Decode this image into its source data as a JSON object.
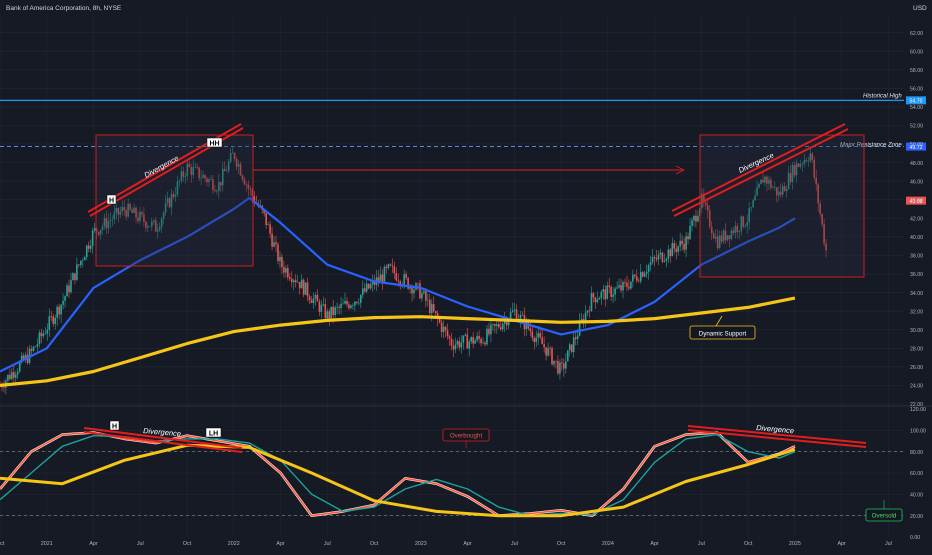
{
  "header": {
    "title": "Bank of America Corporation, 8h, NYSE",
    "currency_label": "USD"
  },
  "colors": {
    "background": "#161a25",
    "grid": "#232836",
    "axis_text": "#b2b5be",
    "up_candle": "#26a69a",
    "down_candle": "#ef5350",
    "ma_fast": "#2962ff",
    "ma_slow": "#f5c518",
    "annotation_red": "#e01e1e",
    "historical_high_line": "#2196f3",
    "resistance_line": "#4aa3ff",
    "osc_white": "#ffffff",
    "osc_red": "#ff5a3c",
    "osc_teal": "#1aa39b",
    "osc_yellow": "#f5c518"
  },
  "chart_data": [
    {
      "type": "candlestick",
      "title": "Bank of America Corporation, 8h, NYSE",
      "y_tick_labels": [
        "22.00",
        "24.00",
        "26.00",
        "28.00",
        "30.00",
        "32.00",
        "34.00",
        "36.00",
        "38.00",
        "40.00",
        "42.00",
        "44.00",
        "46.00",
        "48.00",
        "50.00",
        "52.00",
        "54.00",
        "56.00",
        "58.00",
        "60.00",
        "62.00"
      ],
      "x_tick_labels": [
        "Oct",
        "2021",
        "Apr",
        "Jul",
        "Oct",
        "2022",
        "Apr",
        "Jul",
        "Oct",
        "2023",
        "Apr",
        "Jul",
        "Oct",
        "2024",
        "Apr",
        "Jul",
        "Oct",
        "2025",
        "Apr",
        "Jul"
      ],
      "ylim": [
        22,
        64
      ],
      "grid": true,
      "price_series": {
        "name": "close",
        "x": [
          "2020-10",
          "2020-12",
          "2021-02",
          "2021-04",
          "2021-06",
          "2021-08",
          "2021-10",
          "2021-12",
          "2022-01",
          "2022-02",
          "2022-03",
          "2022-04",
          "2022-05",
          "2022-07",
          "2022-09",
          "2022-11",
          "2023-01",
          "2023-03",
          "2023-05",
          "2023-07",
          "2023-09",
          "2023-10",
          "2023-12",
          "2024-02",
          "2024-04",
          "2024-06",
          "2024-07",
          "2024-08",
          "2024-10",
          "2024-11",
          "2024-12",
          "2025-01",
          "2025-02",
          "2025-03"
        ],
        "values": [
          24.0,
          27.5,
          33.0,
          40.5,
          43.0,
          41.0,
          47.5,
          45.5,
          49.0,
          45.0,
          42.0,
          37.0,
          35.5,
          31.5,
          33.5,
          36.5,
          34.0,
          28.5,
          29.0,
          32.0,
          28.0,
          25.5,
          33.5,
          34.5,
          37.5,
          39.5,
          44.0,
          39.5,
          42.0,
          46.5,
          44.5,
          47.5,
          49.0,
          38.5
        ]
      },
      "moving_averages": [
        {
          "x": [
            "2020-10",
            "2021-01",
            "2021-04",
            "2021-07",
            "2021-10",
            "2022-01",
            "2022-02",
            "2022-04",
            "2022-07",
            "2022-10",
            "2023-01",
            "2023-04",
            "2023-07",
            "2023-10",
            "2024-01",
            "2024-04",
            "2024-07",
            "2024-10",
            "2024-12",
            "2025-01"
          ],
          "values": [
            25.5,
            28.0,
            34.5,
            37.5,
            40.0,
            43.0,
            44.2,
            41.5,
            37.0,
            35.2,
            34.5,
            32.5,
            31.0,
            29.5,
            30.5,
            33.0,
            37.0,
            39.5,
            41.0,
            42.0
          ]
        },
        {
          "x": [
            "2020-10",
            "2021-01",
            "2021-04",
            "2021-07",
            "2021-10",
            "2022-01",
            "2022-04",
            "2022-07",
            "2022-10",
            "2023-01",
            "2023-04",
            "2023-07",
            "2023-10",
            "2024-01",
            "2024-04",
            "2024-07",
            "2024-10",
            "2025-01"
          ],
          "values": [
            24.0,
            24.5,
            25.5,
            27.0,
            28.5,
            29.8,
            30.5,
            31.0,
            31.3,
            31.4,
            31.2,
            31.0,
            30.8,
            30.9,
            31.2,
            31.8,
            32.4,
            33.4
          ]
        }
      ],
      "levels": [
        {
          "label": "Historical High",
          "value": 54.7,
          "value_label": "54.70"
        },
        {
          "label": "Major Resistance Zone",
          "value": 49.72,
          "value_label": "49.72"
        }
      ],
      "last_price_label": "43.98",
      "annotations": [
        "Divergence",
        "H",
        "HH",
        "Divergence",
        "Dynamic Support"
      ]
    },
    {
      "type": "line",
      "y_tick_labels": [
        "0.00",
        "20.00",
        "40.00",
        "60.00",
        "80.00",
        "100.00",
        "120.00"
      ],
      "ylim": [
        0,
        120
      ],
      "levels": [
        80,
        20
      ],
      "series": [
        {
          "values_x": [
            "2020-10",
            "2020-12",
            "2021-02",
            "2021-04",
            "2021-06",
            "2021-08",
            "2021-10",
            "2021-12",
            "2022-02",
            "2022-04",
            "2022-06",
            "2022-08",
            "2022-10",
            "2022-12",
            "2023-02",
            "2023-04",
            "2023-06",
            "2023-08",
            "2023-10",
            "2023-12",
            "2024-02",
            "2024-04",
            "2024-06",
            "2024-08",
            "2024-10",
            "2024-12",
            "2025-01"
          ],
          "values": [
            45,
            80,
            96,
            98,
            92,
            88,
            95,
            90,
            85,
            60,
            20,
            24,
            30,
            55,
            50,
            38,
            20,
            22,
            25,
            20,
            45,
            85,
            96,
            98,
            70,
            78,
            85
          ]
        },
        {
          "values_x": [
            "2020-10",
            "2020-12",
            "2021-02",
            "2021-04",
            "2021-06",
            "2021-08",
            "2021-10",
            "2021-12",
            "2022-02",
            "2022-04",
            "2022-06",
            "2022-08",
            "2022-10",
            "2022-12",
            "2023-02",
            "2023-04",
            "2023-06",
            "2023-08",
            "2023-10",
            "2023-12",
            "2024-02",
            "2024-04",
            "2024-06",
            "2024-08",
            "2024-10",
            "2024-12",
            "2025-01"
          ],
          "values": [
            35,
            60,
            85,
            95,
            94,
            90,
            92,
            92,
            88,
            72,
            40,
            24,
            28,
            45,
            54,
            45,
            28,
            20,
            22,
            21,
            35,
            70,
            92,
            96,
            80,
            74,
            80
          ]
        },
        {
          "values_x": [
            "2020-10",
            "2021-02",
            "2021-06",
            "2021-10",
            "2022-02",
            "2022-06",
            "2022-10",
            "2023-02",
            "2023-06",
            "2023-10",
            "2024-02",
            "2024-06",
            "2024-10",
            "2025-01"
          ],
          "values": [
            55,
            50,
            72,
            86,
            84,
            60,
            34,
            24,
            20,
            20,
            28,
            52,
            68,
            82
          ]
        }
      ],
      "annotations": [
        "H",
        "Divergence",
        "LH",
        "Overbought",
        "Divergence",
        "Oversold"
      ]
    }
  ]
}
